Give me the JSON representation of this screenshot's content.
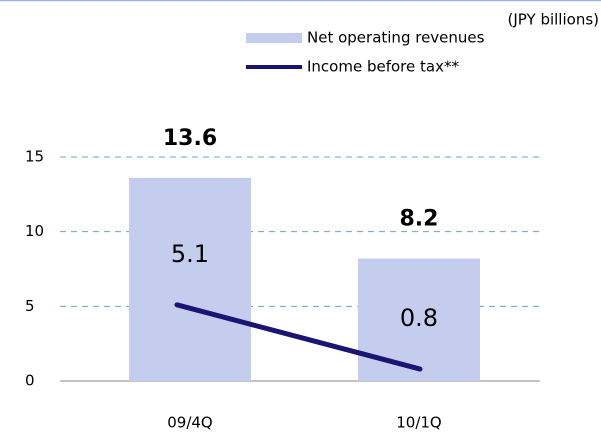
{
  "chart_data": {
    "type": "bar",
    "unit_label": "(JPY billions)",
    "categories": [
      "09/4Q",
      "10/1Q"
    ],
    "series": [
      {
        "name": "Net operating revenues",
        "type": "bar",
        "color": "#c5cdee",
        "values": [
          13.6,
          8.2
        ]
      },
      {
        "name": "Income before tax**",
        "type": "line",
        "color": "#1c1472",
        "values": [
          5.1,
          0.8
        ]
      }
    ],
    "ylim": [
      0,
      15
    ],
    "yticks": [
      0,
      5,
      10,
      15
    ],
    "grid": true
  }
}
